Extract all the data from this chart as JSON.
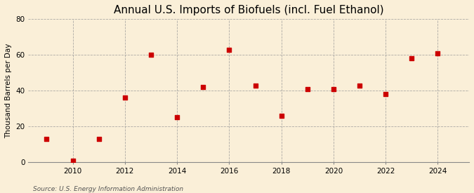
{
  "years": [
    2009,
    2010,
    2011,
    2012,
    2013,
    2014,
    2015,
    2016,
    2017,
    2018,
    2019,
    2020,
    2021,
    2022,
    2023,
    2024
  ],
  "values": [
    13,
    1,
    13,
    36,
    60,
    25,
    42,
    63,
    43,
    26,
    41,
    41,
    43,
    38,
    58,
    61
  ],
  "title": "Annual U.S. Imports of Biofuels (incl. Fuel Ethanol)",
  "ylabel": "Thousand Barrels per Day",
  "source": "Source: U.S. Energy Information Administration",
  "xlim": [
    2008.3,
    2025.2
  ],
  "ylim": [
    0,
    80
  ],
  "yticks": [
    0,
    20,
    40,
    60,
    80
  ],
  "xticks": [
    2010,
    2012,
    2014,
    2016,
    2018,
    2020,
    2022,
    2024
  ],
  "marker_color": "#cc0000",
  "marker": "s",
  "marker_size": 4,
  "bg_color": "#faefd8",
  "grid_color": "#999999",
  "title_fontsize": 11,
  "label_fontsize": 7.5,
  "tick_fontsize": 7.5,
  "source_fontsize": 6.5
}
